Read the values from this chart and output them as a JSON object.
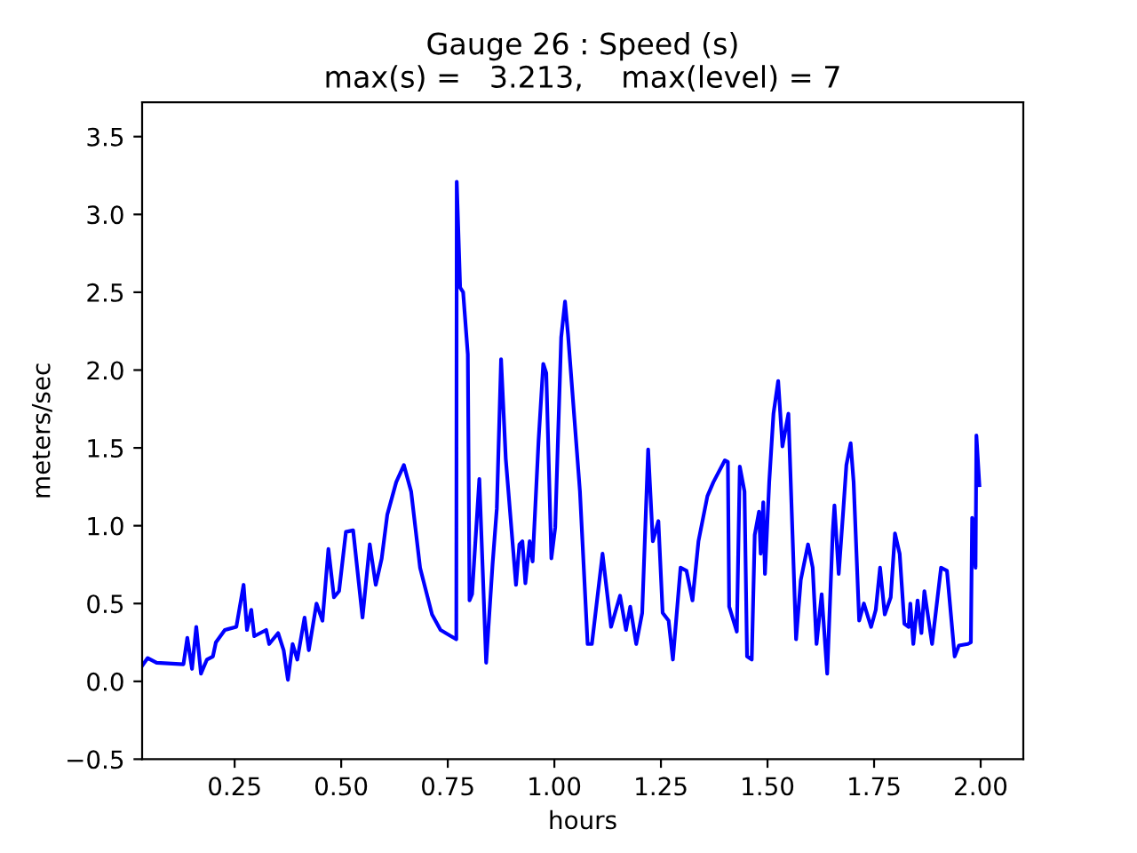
{
  "chart_data": {
    "type": "line",
    "title": "Gauge 26 : Speed (s)\nmax(s) =   3.213,    max(level) = 7",
    "xlabel": "hours",
    "ylabel": "meters/sec",
    "x": [
      0.033,
      0.046,
      0.067,
      0.13,
      0.139,
      0.15,
      0.16,
      0.171,
      0.185,
      0.199,
      0.206,
      0.227,
      0.254,
      0.271,
      0.279,
      0.289,
      0.296,
      0.324,
      0.331,
      0.352,
      0.365,
      0.375,
      0.386,
      0.397,
      0.414,
      0.424,
      0.442,
      0.456,
      0.47,
      0.483,
      0.495,
      0.511,
      0.528,
      0.55,
      0.567,
      0.581,
      0.595,
      0.608,
      0.629,
      0.647,
      0.664,
      0.685,
      0.713,
      0.733,
      0.77,
      0.771,
      0.779,
      0.786,
      0.797,
      0.801,
      0.807,
      0.824,
      0.84,
      0.855,
      0.865,
      0.875,
      0.886,
      0.91,
      0.918,
      0.925,
      0.932,
      0.942,
      0.949,
      0.963,
      0.974,
      0.981,
      0.993,
      1.002,
      1.016,
      1.025,
      1.032,
      1.06,
      1.078,
      1.088,
      1.113,
      1.133,
      1.154,
      1.168,
      1.178,
      1.192,
      1.206,
      1.22,
      1.231,
      1.244,
      1.254,
      1.268,
      1.278,
      1.296,
      1.31,
      1.324,
      1.338,
      1.359,
      1.373,
      1.4,
      1.407,
      1.41,
      1.428,
      1.435,
      1.446,
      1.452,
      1.463,
      1.47,
      1.48,
      1.484,
      1.49,
      1.494,
      1.504,
      1.514,
      1.525,
      1.535,
      1.549,
      1.567,
      1.578,
      1.595,
      1.606,
      1.615,
      1.627,
      1.64,
      1.653,
      1.657,
      1.667,
      1.678,
      1.685,
      1.695,
      1.702,
      1.715,
      1.726,
      1.743,
      1.754,
      1.764,
      1.775,
      1.789,
      1.799,
      1.81,
      1.821,
      1.831,
      1.835,
      1.842,
      1.852,
      1.861,
      1.868,
      1.886,
      1.907,
      1.921,
      1.939,
      1.949,
      1.97,
      1.977,
      1.98,
      1.988,
      1.99,
      1.997
    ],
    "series": [
      {
        "color": "#0000ff",
        "values": [
          0.1,
          0.15,
          0.12,
          0.11,
          0.28,
          0.08,
          0.35,
          0.05,
          0.14,
          0.16,
          0.25,
          0.33,
          0.35,
          0.62,
          0.33,
          0.46,
          0.29,
          0.33,
          0.24,
          0.31,
          0.2,
          0.01,
          0.24,
          0.14,
          0.41,
          0.2,
          0.5,
          0.39,
          0.85,
          0.54,
          0.58,
          0.96,
          0.97,
          0.41,
          0.88,
          0.62,
          0.79,
          1.07,
          1.28,
          1.39,
          1.22,
          0.73,
          0.43,
          0.33,
          0.27,
          3.21,
          2.53,
          2.5,
          2.1,
          0.52,
          0.56,
          1.3,
          0.12,
          0.75,
          1.11,
          2.07,
          1.43,
          0.62,
          0.88,
          0.9,
          0.63,
          0.9,
          0.77,
          1.55,
          2.04,
          1.98,
          0.79,
          0.99,
          2.21,
          2.44,
          2.23,
          1.22,
          0.24,
          0.24,
          0.82,
          0.35,
          0.55,
          0.33,
          0.48,
          0.24,
          0.44,
          1.49,
          0.9,
          1.03,
          0.44,
          0.39,
          0.14,
          0.73,
          0.71,
          0.52,
          0.9,
          1.19,
          1.28,
          1.42,
          1.41,
          0.48,
          0.32,
          1.38,
          1.22,
          0.16,
          0.14,
          0.94,
          1.09,
          0.82,
          1.15,
          0.69,
          1.28,
          1.72,
          1.93,
          1.51,
          1.72,
          0.27,
          0.65,
          0.88,
          0.73,
          0.24,
          0.56,
          0.05,
          0.96,
          1.13,
          0.69,
          1.11,
          1.39,
          1.53,
          1.28,
          0.39,
          0.5,
          0.35,
          0.46,
          0.73,
          0.43,
          0.54,
          0.95,
          0.82,
          0.37,
          0.35,
          0.5,
          0.24,
          0.52,
          0.31,
          0.58,
          0.24,
          0.73,
          0.71,
          0.16,
          0.23,
          0.24,
          0.25,
          1.05,
          0.73,
          1.58,
          1.26
        ]
      }
    ],
    "xlim": [
      0.033,
      2.1
    ],
    "ylim": [
      -0.5,
      3.72
    ],
    "xticks": [
      {
        "value": 0.25,
        "label": "0.25"
      },
      {
        "value": 0.5,
        "label": "0.50"
      },
      {
        "value": 0.75,
        "label": "0.75"
      },
      {
        "value": 1.0,
        "label": "1.00"
      },
      {
        "value": 1.25,
        "label": "1.25"
      },
      {
        "value": 1.5,
        "label": "1.50"
      },
      {
        "value": 1.75,
        "label": "1.75"
      },
      {
        "value": 2.0,
        "label": "2.00"
      }
    ],
    "yticks": [
      {
        "value": -0.5,
        "label": "−0.5"
      },
      {
        "value": 0.0,
        "label": "0.0"
      },
      {
        "value": 0.5,
        "label": "0.5"
      },
      {
        "value": 1.0,
        "label": "1.0"
      },
      {
        "value": 1.5,
        "label": "1.5"
      },
      {
        "value": 2.0,
        "label": "2.0"
      },
      {
        "value": 2.5,
        "label": "2.5"
      },
      {
        "value": 3.0,
        "label": "3.0"
      },
      {
        "value": 3.5,
        "label": "3.5"
      }
    ],
    "grid": false,
    "marker": "none",
    "line_style": "solid"
  }
}
